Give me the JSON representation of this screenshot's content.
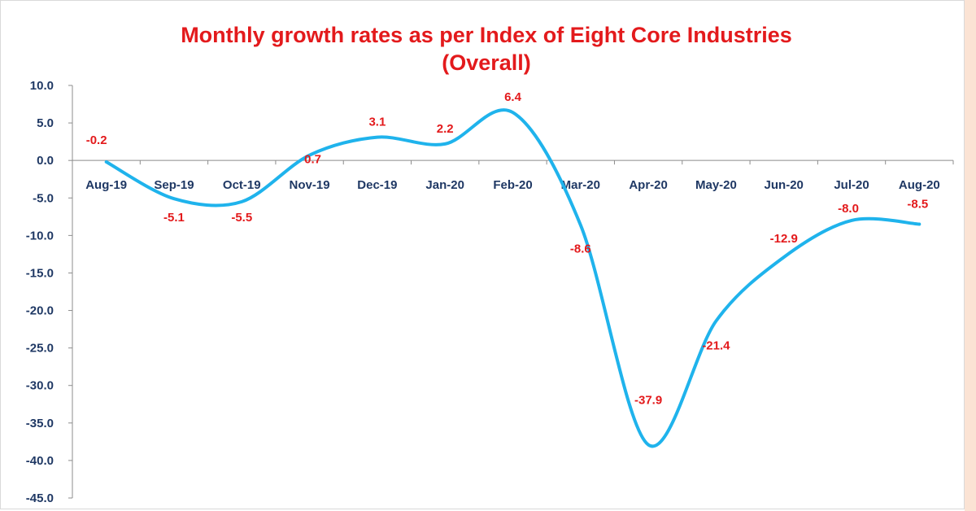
{
  "chart_data": {
    "type": "line",
    "title": "Monthly growth rates as per Index of Eight Core Industries",
    "subtitle": "(Overall)",
    "categories": [
      "Aug-19",
      "Sep-19",
      "Oct-19",
      "Nov-19",
      "Dec-19",
      "Jan-20",
      "Feb-20",
      "Mar-20",
      "Apr-20",
      "May-20",
      "Jun-20",
      "Jul-20",
      "Aug-20"
    ],
    "series": [
      {
        "values": [
          -0.2,
          -5.1,
          -5.5,
          0.7,
          3.1,
          2.2,
          6.4,
          -8.6,
          -37.9,
          -21.4,
          -12.9,
          -8.0,
          -8.5
        ]
      }
    ],
    "data_labels": [
      "-0.2",
      "-5.1",
      "-5.5",
      "0.7",
      "3.1",
      "2.2",
      "6.4",
      "-8.6",
      "-37.9",
      "-21.4",
      "-12.9",
      "-8.0",
      "-8.5"
    ],
    "y_tick_labels": [
      "10.0",
      "5.0",
      "0.0",
      "-5.0",
      "-10.0",
      "-15.0",
      "-20.0",
      "-25.0",
      "-30.0",
      "-35.0",
      "-40.0",
      "-45.0"
    ],
    "ylim": [
      -45,
      10
    ],
    "xlabel": "",
    "ylabel": "",
    "grid": false,
    "legend": "none",
    "line_color": "#1fb3ec",
    "label_color": "#e31a1c",
    "axis_text_color": "#1f3864",
    "title_color": "#e31a1c"
  }
}
